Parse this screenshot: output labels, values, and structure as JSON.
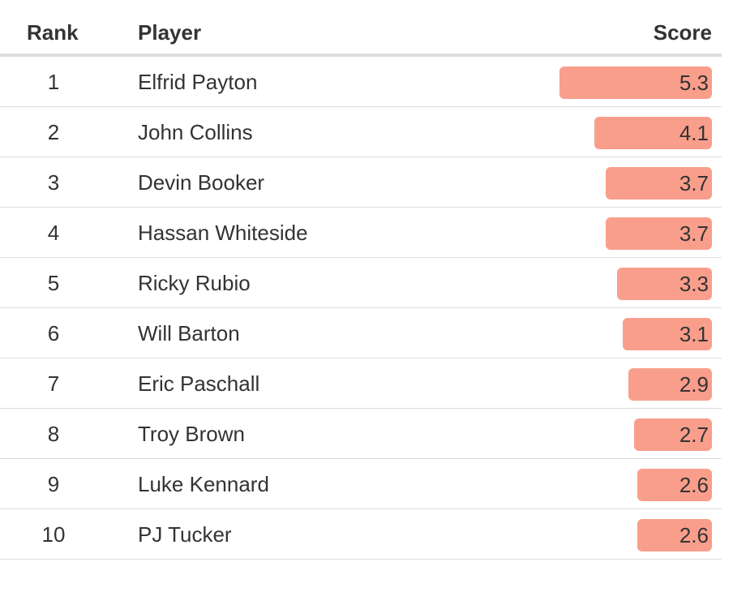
{
  "chart_data": {
    "type": "table",
    "columns": [
      "Rank",
      "Player",
      "Score"
    ],
    "rows": [
      {
        "rank": "1",
        "player": "Elfrid Payton",
        "score": 5.3,
        "score_label": "5.3"
      },
      {
        "rank": "2",
        "player": "John Collins",
        "score": 4.1,
        "score_label": "4.1"
      },
      {
        "rank": "3",
        "player": "Devin Booker",
        "score": 3.7,
        "score_label": "3.7"
      },
      {
        "rank": "4",
        "player": "Hassan Whiteside",
        "score": 3.7,
        "score_label": "3.7"
      },
      {
        "rank": "5",
        "player": "Ricky Rubio",
        "score": 3.3,
        "score_label": "3.3"
      },
      {
        "rank": "6",
        "player": "Will Barton",
        "score": 3.1,
        "score_label": "3.1"
      },
      {
        "rank": "7",
        "player": "Eric Paschall",
        "score": 2.9,
        "score_label": "2.9"
      },
      {
        "rank": "8",
        "player": "Troy Brown",
        "score": 2.7,
        "score_label": "2.7"
      },
      {
        "rank": "9",
        "player": "Luke Kennard",
        "score": 2.6,
        "score_label": "2.6"
      },
      {
        "rank": "10",
        "player": "PJ Tucker",
        "score": 2.6,
        "score_label": "2.6"
      }
    ],
    "bar_color": "#fa9e8c"
  }
}
